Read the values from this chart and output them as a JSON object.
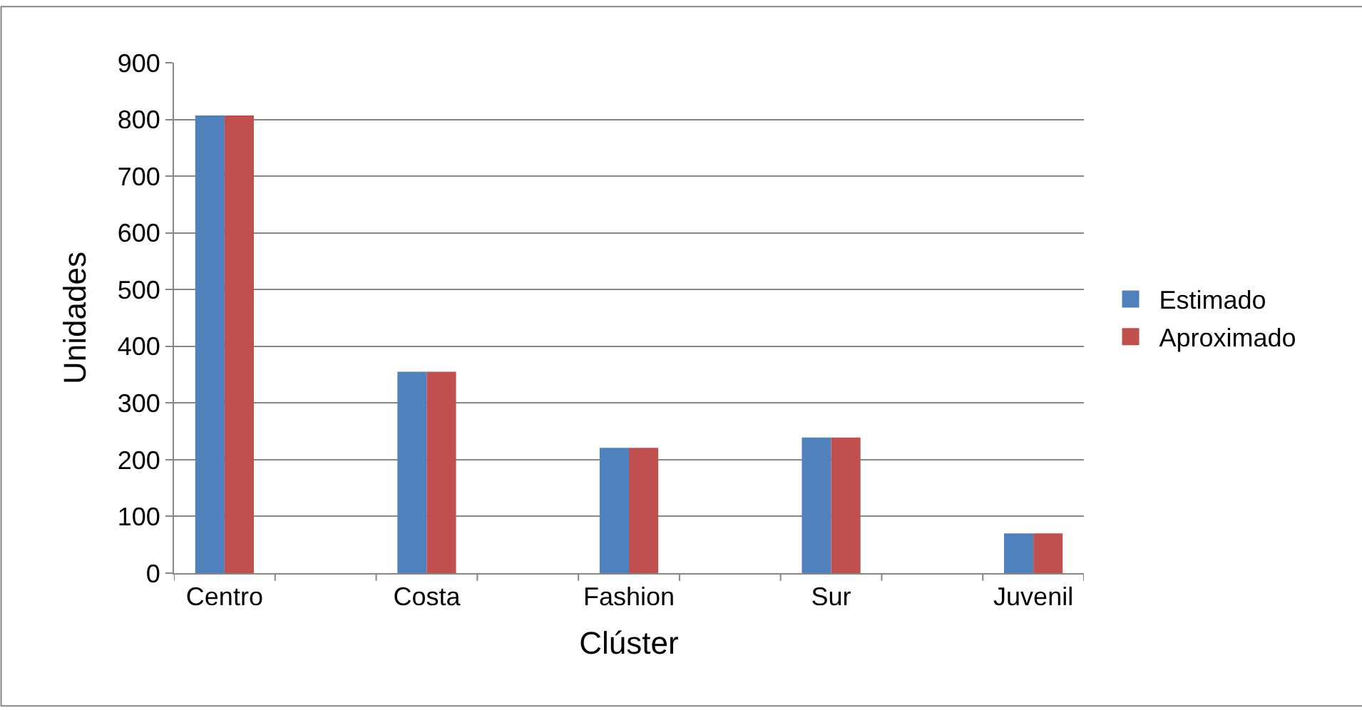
{
  "chart_data": {
    "type": "bar",
    "xlabel": "Clúster",
    "ylabel": "Unidades",
    "categories": [
      "Centro",
      null,
      "Costa",
      null,
      "Fashion",
      null,
      "Sur",
      null,
      "Juvenil"
    ],
    "series": [
      {
        "name": "Estimado",
        "color": "#4f81bd",
        "values": [
          807,
          null,
          355,
          null,
          221,
          null,
          239,
          null,
          70
        ]
      },
      {
        "name": "Aproximado",
        "color": "#c0504d",
        "values": [
          807,
          null,
          355,
          null,
          221,
          null,
          239,
          null,
          70
        ]
      }
    ],
    "ylim": [
      0,
      900
    ],
    "yticks": [
      0,
      100,
      200,
      300,
      400,
      500,
      600,
      700,
      800,
      900
    ],
    "grid": "y",
    "legend": "right"
  }
}
